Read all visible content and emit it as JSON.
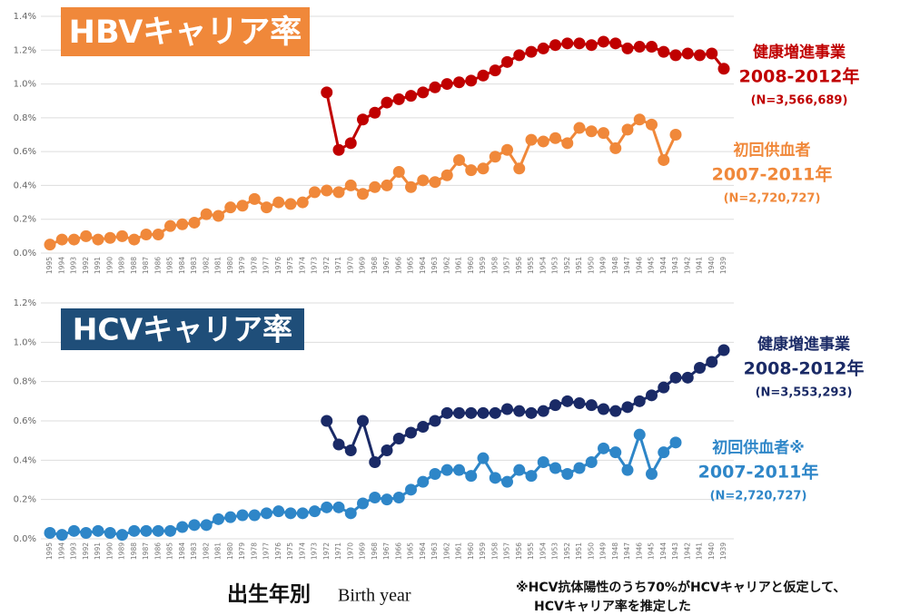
{
  "chart_data": [
    {
      "type": "line",
      "title": "HBVキャリア率",
      "title_color": "#f0883a",
      "categories": [
        "1995",
        "1994",
        "1993",
        "1992",
        "1991",
        "1990",
        "1989",
        "1988",
        "1987",
        "1986",
        "1985",
        "1984",
        "1983",
        "1982",
        "1981",
        "1980",
        "1979",
        "1978",
        "1977",
        "1976",
        "1975",
        "1974",
        "1973",
        "1972",
        "1971",
        "1970",
        "1969",
        "1968",
        "1967",
        "1966",
        "1965",
        "1964",
        "1963",
        "1962",
        "1961",
        "1960",
        "1959",
        "1958",
        "1957",
        "1956",
        "1955",
        "1954",
        "1953",
        "1952",
        "1951",
        "1950",
        "1949",
        "1948",
        "1947",
        "1946",
        "1945",
        "1944",
        "1943",
        "1942",
        "1941",
        "1940",
        "1939"
      ],
      "ylim": [
        0,
        1.4
      ],
      "yticks": [
        {
          "value": 0,
          "label": "0.0%"
        },
        {
          "value": 0.2,
          "label": "0.2%"
        },
        {
          "value": 0.4,
          "label": "0.4%"
        },
        {
          "value": 0.6,
          "label": "0.6%"
        },
        {
          "value": 0.8,
          "label": "0.8%"
        },
        {
          "value": 1.0,
          "label": "1.0%"
        },
        {
          "value": 1.2,
          "label": "1.2%"
        },
        {
          "value": 1.4,
          "label": "1.4%"
        }
      ],
      "grid": true,
      "series": [
        {
          "name": "健康増進事業",
          "period": "2008-2012年",
          "note": "(N=3,566,689)",
          "color": "#c00000",
          "values": [
            null,
            null,
            null,
            null,
            null,
            null,
            null,
            null,
            null,
            null,
            null,
            null,
            null,
            null,
            null,
            null,
            null,
            null,
            null,
            null,
            null,
            null,
            null,
            0.95,
            0.61,
            0.65,
            0.79,
            0.83,
            0.89,
            0.91,
            0.93,
            0.95,
            0.98,
            1.0,
            1.01,
            1.02,
            1.05,
            1.08,
            1.13,
            1.17,
            1.19,
            1.21,
            1.23,
            1.24,
            1.24,
            1.23,
            1.25,
            1.24,
            1.21,
            1.22,
            1.22,
            1.19,
            1.17,
            1.18,
            1.17,
            1.18,
            1.09
          ]
        },
        {
          "name": "初回供血者",
          "period": "2007-2011年",
          "note": "(N=2,720,727)",
          "color": "#f0883a",
          "values": [
            0.05,
            0.08,
            0.08,
            0.1,
            0.08,
            0.09,
            0.1,
            0.08,
            0.11,
            0.11,
            0.16,
            0.17,
            0.18,
            0.23,
            0.22,
            0.27,
            0.28,
            0.32,
            0.27,
            0.3,
            0.29,
            0.3,
            0.36,
            0.37,
            0.36,
            0.4,
            0.35,
            0.39,
            0.4,
            0.48,
            0.39,
            0.43,
            0.42,
            0.46,
            0.55,
            0.49,
            0.5,
            0.57,
            0.61,
            0.5,
            0.67,
            0.66,
            0.68,
            0.65,
            0.74,
            0.72,
            0.71,
            0.62,
            0.73,
            0.79,
            0.76,
            0.55,
            0.7,
            null,
            null,
            null,
            null
          ]
        }
      ]
    },
    {
      "type": "line",
      "title": "HCVキャリア率",
      "title_color": "#1f4e79",
      "categories": [
        "1995",
        "1994",
        "1993",
        "1992",
        "1991",
        "1990",
        "1989",
        "1988",
        "1987",
        "1986",
        "1985",
        "1984",
        "1983",
        "1982",
        "1981",
        "1980",
        "1979",
        "1978",
        "1977",
        "1976",
        "1975",
        "1974",
        "1973",
        "1972",
        "1971",
        "1970",
        "1969",
        "1968",
        "1967",
        "1966",
        "1965",
        "1964",
        "1963",
        "1962",
        "1961",
        "1960",
        "1959",
        "1958",
        "1957",
        "1956",
        "1955",
        "1954",
        "1953",
        "1952",
        "1951",
        "1950",
        "1949",
        "1948",
        "1947",
        "1946",
        "1945",
        "1944",
        "1943",
        "1942",
        "1941",
        "1940",
        "1939"
      ],
      "ylim": [
        0,
        1.2
      ],
      "yticks": [
        {
          "value": 0,
          "label": "0.0%"
        },
        {
          "value": 0.2,
          "label": "0.2%"
        },
        {
          "value": 0.4,
          "label": "0.4%"
        },
        {
          "value": 0.6,
          "label": "0.6%"
        },
        {
          "value": 0.8,
          "label": "0.8%"
        },
        {
          "value": 1.0,
          "label": "1.0%"
        },
        {
          "value": 1.2,
          "label": "1.2%"
        }
      ],
      "grid": true,
      "series": [
        {
          "name": "健康増進事業",
          "period": "2008-2012年",
          "note": "(N=3,553,293)",
          "color": "#1a2a66",
          "values": [
            null,
            null,
            null,
            null,
            null,
            null,
            null,
            null,
            null,
            null,
            null,
            null,
            null,
            null,
            null,
            null,
            null,
            null,
            null,
            null,
            null,
            null,
            null,
            0.6,
            0.48,
            0.45,
            0.6,
            0.39,
            0.45,
            0.51,
            0.54,
            0.57,
            0.6,
            0.64,
            0.64,
            0.64,
            0.64,
            0.64,
            0.66,
            0.65,
            0.64,
            0.65,
            0.68,
            0.7,
            0.69,
            0.68,
            0.66,
            0.65,
            0.67,
            0.7,
            0.73,
            0.77,
            0.82,
            0.82,
            0.87,
            0.9,
            0.96
          ]
        },
        {
          "name": "初回供血者※",
          "period": "2007-2011年",
          "note": "(N=2,720,727)",
          "color": "#2e86c8",
          "values": [
            0.03,
            0.02,
            0.04,
            0.03,
            0.04,
            0.03,
            0.02,
            0.04,
            0.04,
            0.04,
            0.04,
            0.06,
            0.07,
            0.07,
            0.1,
            0.11,
            0.12,
            0.12,
            0.13,
            0.14,
            0.13,
            0.13,
            0.14,
            0.16,
            0.16,
            0.13,
            0.18,
            0.21,
            0.2,
            0.21,
            0.25,
            0.29,
            0.33,
            0.35,
            0.35,
            0.32,
            0.41,
            0.31,
            0.29,
            0.35,
            0.32,
            0.39,
            0.36,
            0.33,
            0.36,
            0.39,
            0.46,
            0.44,
            0.35,
            0.53,
            0.33,
            0.44,
            0.49,
            null,
            null,
            null,
            null
          ]
        }
      ],
      "xlabel": [
        "出生年別",
        "Birth year"
      ],
      "footnote": [
        "※HCV抗体陽性のうち70%がHCVキャリアと仮定して、",
        "HCVキャリア率を推定した"
      ]
    }
  ]
}
